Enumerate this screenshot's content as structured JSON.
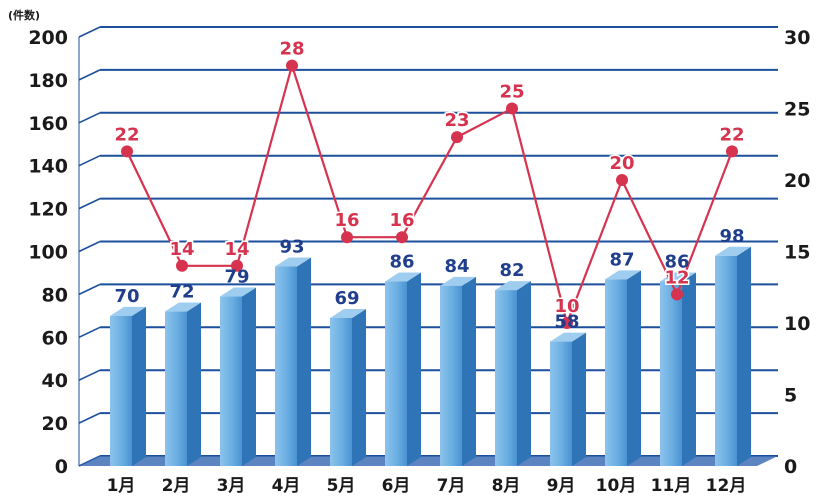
{
  "chart_data": {
    "type": "bar",
    "unit_label": "(件数)",
    "categories": [
      "1月",
      "2月",
      "3月",
      "4月",
      "5月",
      "6月",
      "7月",
      "8月",
      "9月",
      "10月",
      "11月",
      "12月"
    ],
    "series": [
      {
        "type": "bar",
        "axis": "left",
        "values": [
          70,
          72,
          79,
          93,
          69,
          86,
          84,
          82,
          58,
          87,
          86,
          98
        ]
      },
      {
        "type": "line",
        "axis": "right",
        "values": [
          22,
          14,
          14,
          28,
          16,
          16,
          23,
          25,
          10,
          20,
          12,
          22
        ]
      }
    ],
    "y_left": {
      "min": 0,
      "max": 200,
      "ticks": [
        0,
        20,
        40,
        60,
        80,
        100,
        120,
        140,
        160,
        180,
        200
      ]
    },
    "y_right": {
      "min": 0,
      "max": 30,
      "ticks": [
        0,
        5,
        10,
        15,
        20,
        25,
        30
      ]
    },
    "grid": true,
    "colors": {
      "bar_front": "#6aaee2",
      "bar_front_dark": "#3d86c8",
      "bar_side": "#2f74b6",
      "bar_top": "#9fcdf0",
      "line": "#d6334f",
      "grid": "#1c4f9c",
      "bar_label": "#1f3e8c",
      "floor": "#3e6fb5"
    }
  }
}
